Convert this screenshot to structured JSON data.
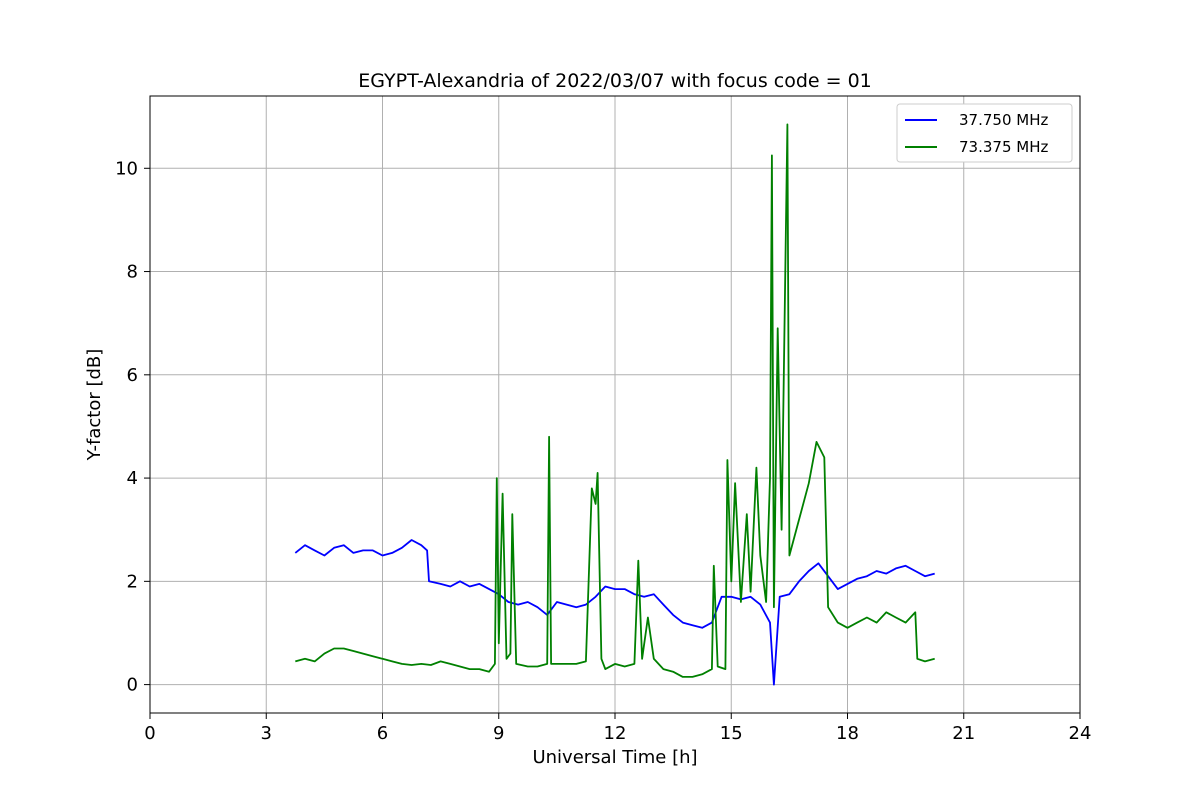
{
  "chart_data": {
    "type": "line",
    "title": "EGYPT-Alexandria of 2022/03/07 with focus code = 01",
    "xlabel": "Universal Time [h]",
    "ylabel": "Y-factor [dB]",
    "xlim": [
      0,
      24
    ],
    "ylim": [
      -0.55,
      11.4
    ],
    "xticks": [
      0,
      3,
      6,
      9,
      12,
      15,
      18,
      21,
      24
    ],
    "yticks": [
      0,
      2,
      4,
      6,
      8,
      10
    ],
    "grid": true,
    "legend_position": "top-right",
    "series": [
      {
        "name": "37.750 MHz",
        "color": "#0000ff",
        "points": [
          [
            3.75,
            2.55
          ],
          [
            4.0,
            2.7
          ],
          [
            4.25,
            2.6
          ],
          [
            4.5,
            2.5
          ],
          [
            4.75,
            2.65
          ],
          [
            5.0,
            2.7
          ],
          [
            5.25,
            2.55
          ],
          [
            5.5,
            2.6
          ],
          [
            5.75,
            2.6
          ],
          [
            6.0,
            2.5
          ],
          [
            6.25,
            2.55
          ],
          [
            6.5,
            2.65
          ],
          [
            6.75,
            2.8
          ],
          [
            7.0,
            2.7
          ],
          [
            7.15,
            2.6
          ],
          [
            7.2,
            2.0
          ],
          [
            7.5,
            1.95
          ],
          [
            7.75,
            1.9
          ],
          [
            8.0,
            2.0
          ],
          [
            8.25,
            1.9
          ],
          [
            8.5,
            1.95
          ],
          [
            8.75,
            1.85
          ],
          [
            9.0,
            1.75
          ],
          [
            9.25,
            1.6
          ],
          [
            9.5,
            1.55
          ],
          [
            9.75,
            1.6
          ],
          [
            10.0,
            1.5
          ],
          [
            10.25,
            1.35
          ],
          [
            10.5,
            1.6
          ],
          [
            10.75,
            1.55
          ],
          [
            11.0,
            1.5
          ],
          [
            11.25,
            1.55
          ],
          [
            11.5,
            1.7
          ],
          [
            11.75,
            1.9
          ],
          [
            12.0,
            1.85
          ],
          [
            12.25,
            1.85
          ],
          [
            12.5,
            1.75
          ],
          [
            12.75,
            1.7
          ],
          [
            13.0,
            1.75
          ],
          [
            13.25,
            1.55
          ],
          [
            13.5,
            1.35
          ],
          [
            13.75,
            1.2
          ],
          [
            14.0,
            1.15
          ],
          [
            14.25,
            1.1
          ],
          [
            14.5,
            1.2
          ],
          [
            14.75,
            1.7
          ],
          [
            15.0,
            1.7
          ],
          [
            15.25,
            1.65
          ],
          [
            15.5,
            1.7
          ],
          [
            15.75,
            1.55
          ],
          [
            16.0,
            1.2
          ],
          [
            16.1,
            0.0
          ],
          [
            16.25,
            1.7
          ],
          [
            16.5,
            1.75
          ],
          [
            16.75,
            2.0
          ],
          [
            17.0,
            2.2
          ],
          [
            17.25,
            2.35
          ],
          [
            17.5,
            2.1
          ],
          [
            17.75,
            1.85
          ],
          [
            18.0,
            1.95
          ],
          [
            18.25,
            2.05
          ],
          [
            18.5,
            2.1
          ],
          [
            18.75,
            2.2
          ],
          [
            19.0,
            2.15
          ],
          [
            19.25,
            2.25
          ],
          [
            19.5,
            2.3
          ],
          [
            19.75,
            2.2
          ],
          [
            20.0,
            2.1
          ],
          [
            20.25,
            2.15
          ]
        ]
      },
      {
        "name": "73.375 MHz",
        "color": "#008000",
        "points": [
          [
            3.75,
            0.45
          ],
          [
            4.0,
            0.5
          ],
          [
            4.25,
            0.45
          ],
          [
            4.5,
            0.6
          ],
          [
            4.75,
            0.7
          ],
          [
            5.0,
            0.7
          ],
          [
            5.25,
            0.65
          ],
          [
            5.5,
            0.6
          ],
          [
            5.75,
            0.55
          ],
          [
            6.0,
            0.5
          ],
          [
            6.25,
            0.45
          ],
          [
            6.5,
            0.4
          ],
          [
            6.75,
            0.38
          ],
          [
            7.0,
            0.4
          ],
          [
            7.25,
            0.38
          ],
          [
            7.5,
            0.45
          ],
          [
            7.75,
            0.4
          ],
          [
            8.0,
            0.35
          ],
          [
            8.25,
            0.3
          ],
          [
            8.5,
            0.3
          ],
          [
            8.75,
            0.25
          ],
          [
            8.9,
            0.4
          ],
          [
            8.95,
            4.0
          ],
          [
            9.0,
            0.8
          ],
          [
            9.1,
            3.7
          ],
          [
            9.2,
            0.5
          ],
          [
            9.3,
            0.6
          ],
          [
            9.35,
            3.3
          ],
          [
            9.45,
            0.4
          ],
          [
            9.75,
            0.35
          ],
          [
            10.0,
            0.35
          ],
          [
            10.25,
            0.4
          ],
          [
            10.3,
            4.8
          ],
          [
            10.35,
            0.4
          ],
          [
            10.5,
            0.4
          ],
          [
            10.75,
            0.4
          ],
          [
            11.0,
            0.4
          ],
          [
            11.25,
            0.45
          ],
          [
            11.4,
            3.8
          ],
          [
            11.5,
            3.5
          ],
          [
            11.55,
            4.1
          ],
          [
            11.65,
            0.5
          ],
          [
            11.75,
            0.3
          ],
          [
            12.0,
            0.4
          ],
          [
            12.25,
            0.35
          ],
          [
            12.5,
            0.4
          ],
          [
            12.6,
            2.4
          ],
          [
            12.7,
            0.5
          ],
          [
            12.85,
            1.3
          ],
          [
            13.0,
            0.5
          ],
          [
            13.25,
            0.3
          ],
          [
            13.5,
            0.25
          ],
          [
            13.75,
            0.15
          ],
          [
            14.0,
            0.15
          ],
          [
            14.25,
            0.2
          ],
          [
            14.5,
            0.3
          ],
          [
            14.55,
            2.3
          ],
          [
            14.65,
            0.35
          ],
          [
            14.85,
            0.3
          ],
          [
            14.9,
            4.35
          ],
          [
            15.0,
            2.0
          ],
          [
            15.1,
            3.9
          ],
          [
            15.25,
            1.6
          ],
          [
            15.4,
            3.3
          ],
          [
            15.5,
            1.8
          ],
          [
            15.65,
            4.2
          ],
          [
            15.75,
            2.5
          ],
          [
            15.9,
            1.6
          ],
          [
            16.0,
            4.0
          ],
          [
            16.05,
            10.25
          ],
          [
            16.1,
            1.5
          ],
          [
            16.2,
            6.9
          ],
          [
            16.3,
            3.0
          ],
          [
            16.45,
            10.85
          ],
          [
            16.5,
            2.5
          ],
          [
            16.75,
            3.2
          ],
          [
            17.0,
            3.9
          ],
          [
            17.2,
            4.7
          ],
          [
            17.4,
            4.4
          ],
          [
            17.5,
            1.5
          ],
          [
            17.75,
            1.2
          ],
          [
            18.0,
            1.1
          ],
          [
            18.25,
            1.2
          ],
          [
            18.5,
            1.3
          ],
          [
            18.75,
            1.2
          ],
          [
            19.0,
            1.4
          ],
          [
            19.25,
            1.3
          ],
          [
            19.5,
            1.2
          ],
          [
            19.75,
            1.4
          ],
          [
            19.8,
            0.5
          ],
          [
            20.0,
            0.45
          ],
          [
            20.25,
            0.5
          ]
        ]
      }
    ]
  }
}
